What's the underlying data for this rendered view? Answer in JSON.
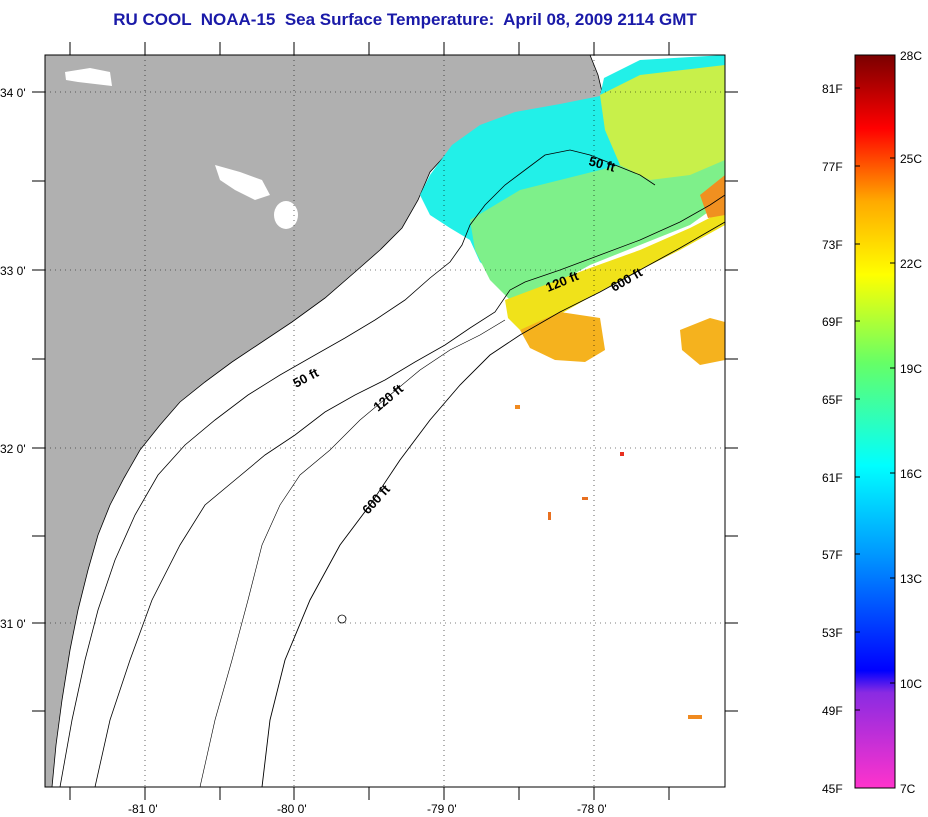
{
  "title": "RU COOL  NOAA-15  Sea Surface Temperature:  April 08, 2009 2114 GMT",
  "map": {
    "lat_labels": [
      "34 0'",
      "33 0'",
      "32 0'",
      "31 0'"
    ],
    "lon_labels": [
      "-81 0'",
      "-80 0'",
      "-79 0'",
      "-78 0'"
    ],
    "contours": {
      "c50_a": "50 ft",
      "c50_b": "50 ft",
      "c120_a": "120 ft",
      "c120_b": "120 ft",
      "c600_a": "600 ft",
      "c600_b": "600 ft"
    },
    "colors": {
      "land": "#b0b0b0",
      "cloud": "#ffffff",
      "line": "#000000"
    }
  },
  "colorbar": {
    "fahrenheit_labels": [
      "81F",
      "77F",
      "73F",
      "69F",
      "65F",
      "61F",
      "57F",
      "53F",
      "49F",
      "45F"
    ],
    "celsius_labels": [
      "28C",
      "25C",
      "22C",
      "19C",
      "16C",
      "13C",
      "10C",
      "7C"
    ]
  }
}
